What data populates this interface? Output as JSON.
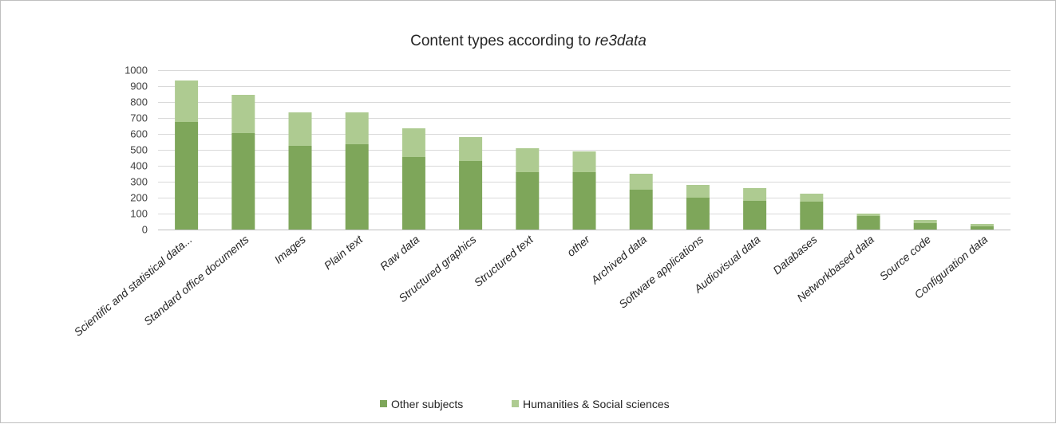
{
  "chart_data": {
    "type": "bar",
    "stacked": true,
    "title": "Content types according to ",
    "title_emphasis": "re3data",
    "categories": [
      "Scientific and statistical data...",
      "Standard office documents",
      "Images",
      "Plain text",
      "Raw data",
      "Structured graphics",
      "Structured text",
      "other",
      "Archived data",
      "Software applications",
      "Audiovisual data",
      "Databases",
      "Networkbased data",
      "Source code",
      "Configuration data"
    ],
    "series": [
      {
        "name": "Other subjects",
        "color": "#7ea65a",
        "values": [
          675,
          605,
          525,
          535,
          455,
          430,
          360,
          360,
          250,
          200,
          180,
          175,
          85,
          40,
          20
        ]
      },
      {
        "name": "Humanities & Social sciences",
        "color": "#aecb91",
        "values": [
          260,
          240,
          210,
          200,
          180,
          150,
          150,
          130,
          100,
          80,
          80,
          50,
          15,
          20,
          15
        ]
      }
    ],
    "ylim": [
      0,
      1000
    ],
    "yticks": [
      0,
      100,
      200,
      300,
      400,
      500,
      600,
      700,
      800,
      900,
      1000
    ],
    "grid": true,
    "legend": "bottom",
    "xlabel": "",
    "ylabel": ""
  }
}
